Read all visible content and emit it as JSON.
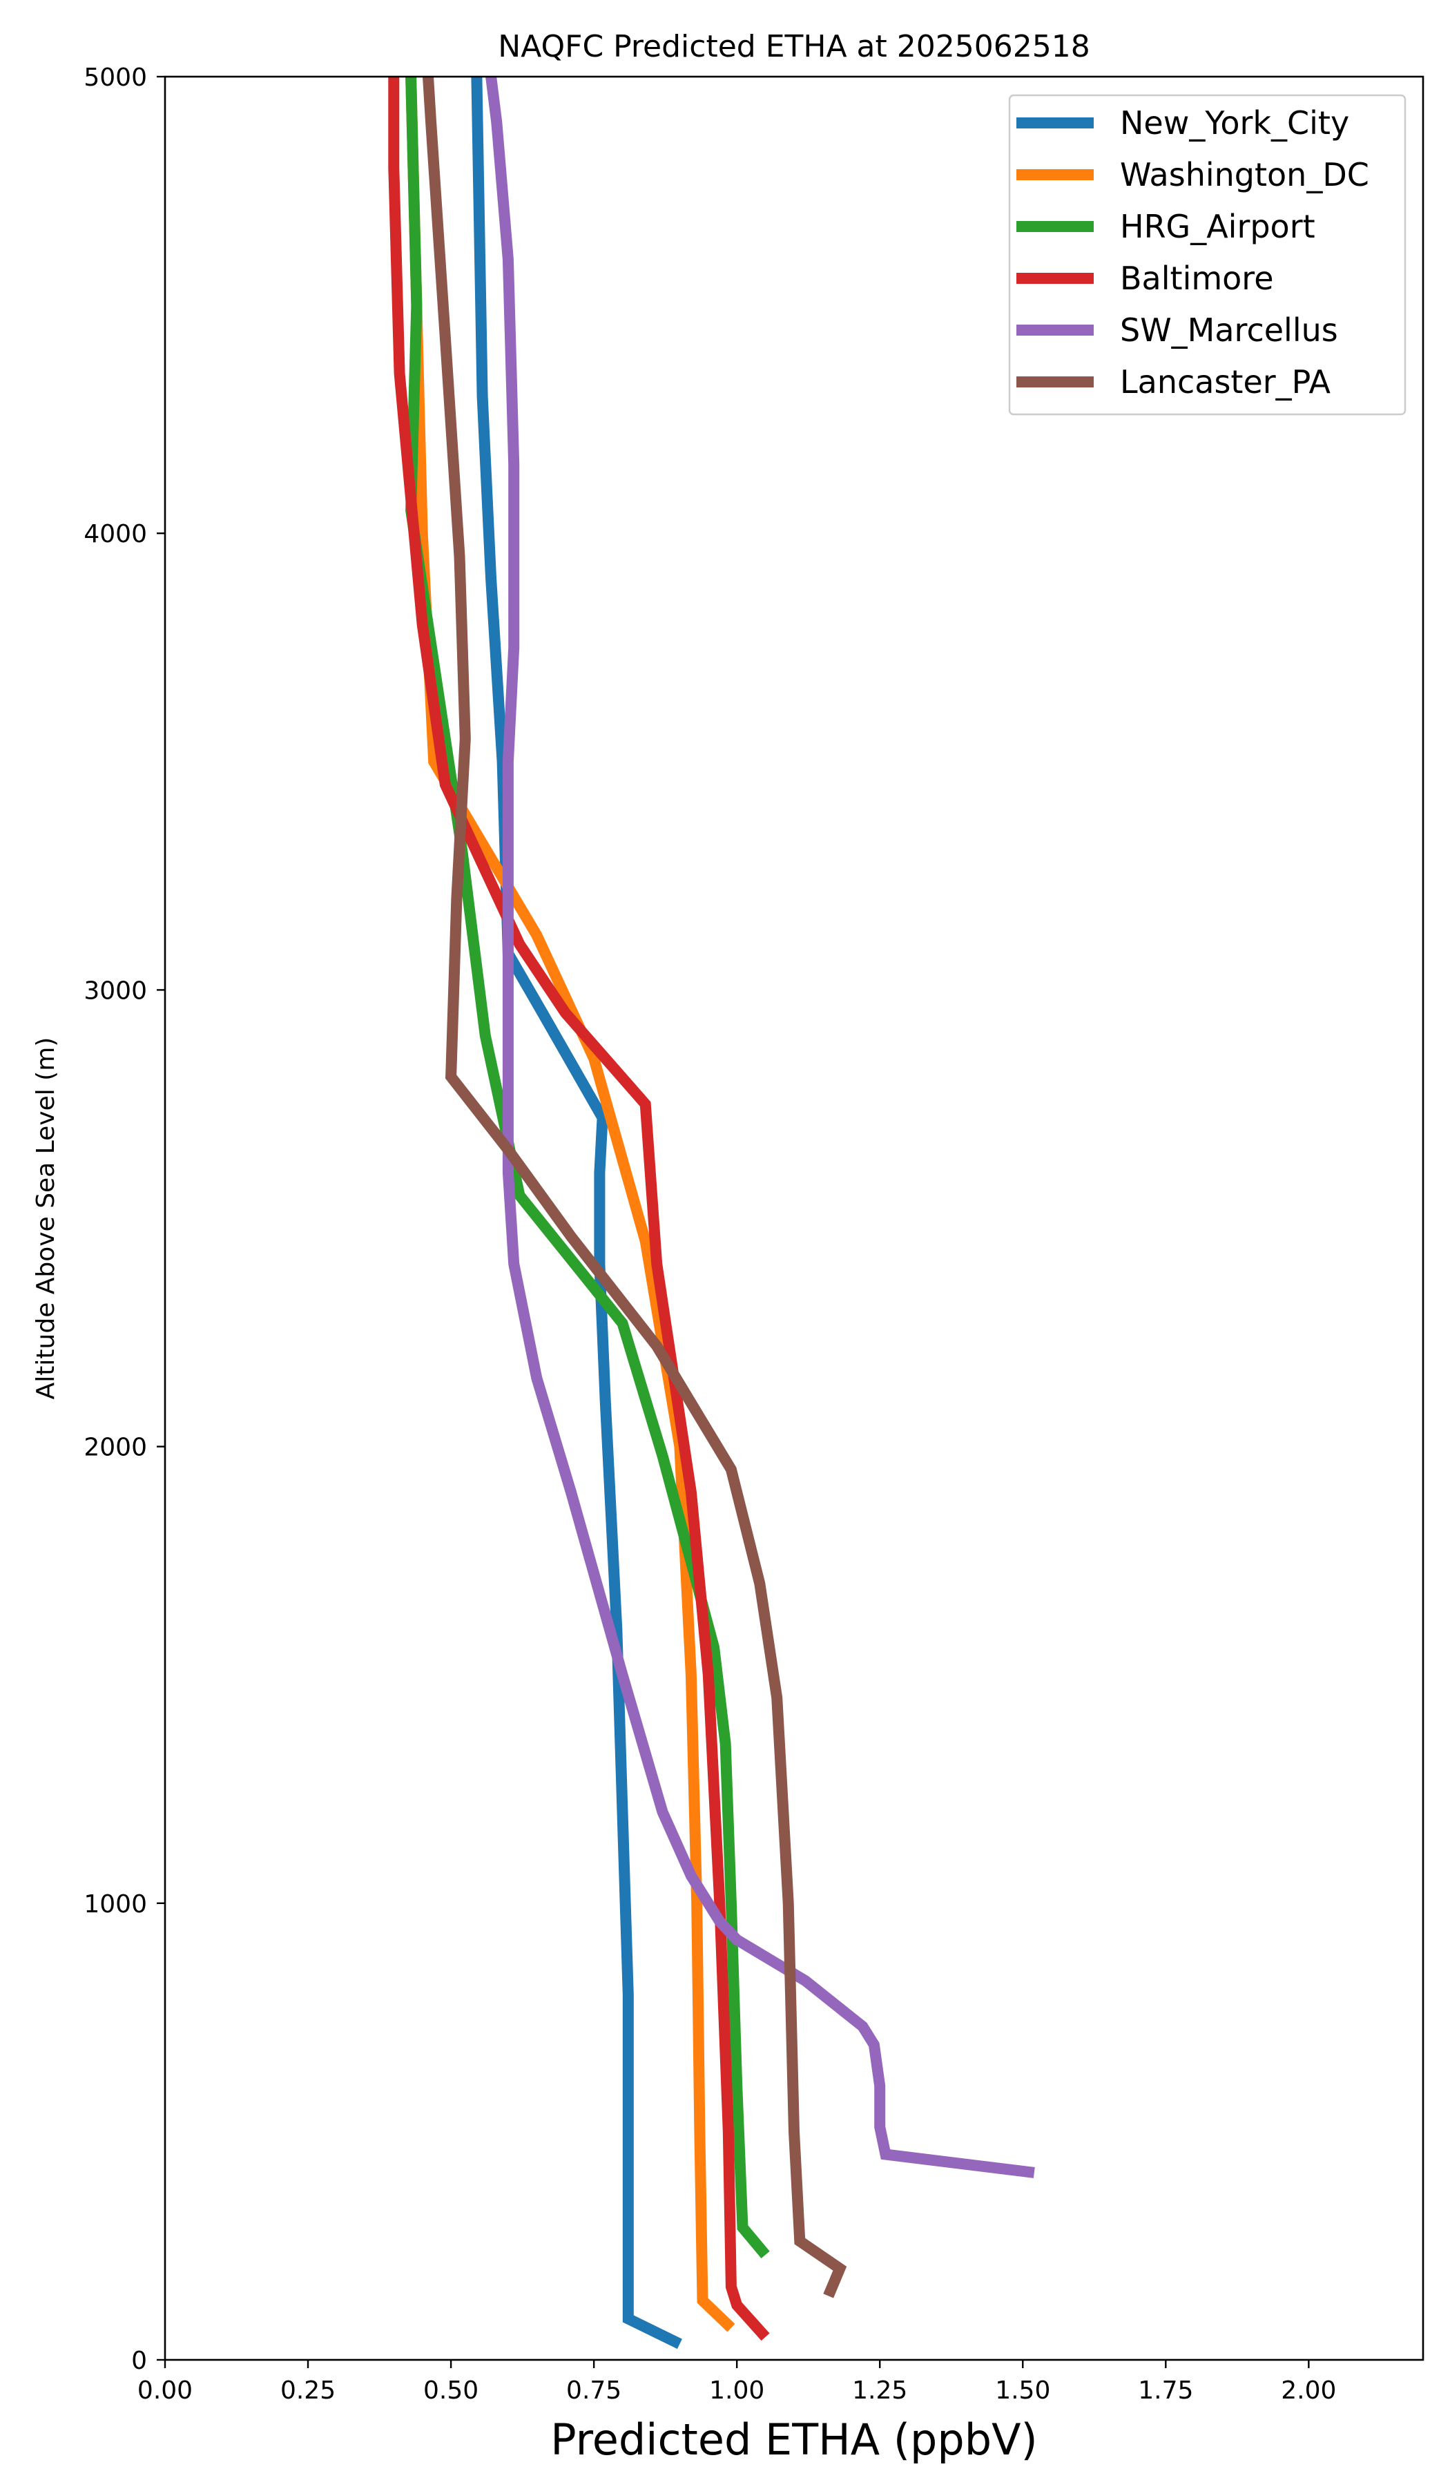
{
  "chart_data": {
    "type": "line",
    "title": "NAQFC Predicted ETHA at 2025062518",
    "xlabel": "Predicted ETHA (ppbV)",
    "ylabel": "Altitude Above Sea Level (m)",
    "xlim": [
      0.0,
      2.2
    ],
    "ylim": [
      0,
      5000
    ],
    "x_ticks": [
      "0.00",
      "0.25",
      "0.50",
      "0.75",
      "1.00",
      "1.25",
      "1.50",
      "1.75",
      "2.00"
    ],
    "y_ticks": [
      "0",
      "1000",
      "2000",
      "3000",
      "4000",
      "5000"
    ],
    "grid": false,
    "legend_position": "top-right",
    "series": [
      {
        "name": "New_York_City",
        "color": "#1f77b4",
        "points": [
          [
            0.9,
            35
          ],
          [
            0.81,
            90
          ],
          [
            0.81,
            250
          ],
          [
            0.81,
            500
          ],
          [
            0.81,
            800
          ],
          [
            0.8,
            1200
          ],
          [
            0.79,
            1600
          ],
          [
            0.77,
            2100
          ],
          [
            0.76,
            2400
          ],
          [
            0.76,
            2600
          ],
          [
            0.765,
            2720
          ],
          [
            0.66,
            2950
          ],
          [
            0.6,
            3080
          ],
          [
            0.59,
            3500
          ],
          [
            0.57,
            3900
          ],
          [
            0.555,
            4300
          ],
          [
            0.55,
            4650
          ],
          [
            0.545,
            5000
          ]
        ]
      },
      {
        "name": "Washington_DC",
        "color": "#ff7f0e",
        "points": [
          [
            0.99,
            70
          ],
          [
            0.94,
            130
          ],
          [
            0.935,
            500
          ],
          [
            0.93,
            1000
          ],
          [
            0.92,
            1500
          ],
          [
            0.9,
            2000
          ],
          [
            0.84,
            2450
          ],
          [
            0.75,
            2850
          ],
          [
            0.65,
            3120
          ],
          [
            0.47,
            3500
          ],
          [
            0.45,
            4000
          ],
          [
            0.44,
            4500
          ],
          [
            0.43,
            5000
          ]
        ]
      },
      {
        "name": "HRG_Airport",
        "color": "#2ca02c",
        "points": [
          [
            1.05,
            230
          ],
          [
            1.01,
            290
          ],
          [
            1.0,
            600
          ],
          [
            0.99,
            1000
          ],
          [
            0.98,
            1350
          ],
          [
            0.96,
            1560
          ],
          [
            0.87,
            1980
          ],
          [
            0.8,
            2270
          ],
          [
            0.62,
            2550
          ],
          [
            0.56,
            2900
          ],
          [
            0.52,
            3300
          ],
          [
            0.49,
            3550
          ],
          [
            0.43,
            4050
          ],
          [
            0.44,
            4500
          ],
          [
            0.43,
            5000
          ]
        ]
      },
      {
        "name": "Baltimore",
        "color": "#d62728",
        "points": [
          [
            1.05,
            50
          ],
          [
            1.0,
            120
          ],
          [
            0.99,
            160
          ],
          [
            0.985,
            500
          ],
          [
            0.97,
            1000
          ],
          [
            0.95,
            1500
          ],
          [
            0.92,
            1900
          ],
          [
            0.86,
            2400
          ],
          [
            0.84,
            2750
          ],
          [
            0.7,
            2950
          ],
          [
            0.62,
            3100
          ],
          [
            0.49,
            3450
          ],
          [
            0.45,
            3800
          ],
          [
            0.41,
            4350
          ],
          [
            0.4,
            4800
          ],
          [
            0.4,
            5000
          ]
        ]
      },
      {
        "name": "SW_Marcellus",
        "color": "#9467bd",
        "points": [
          [
            1.52,
            410
          ],
          [
            1.26,
            450
          ],
          [
            1.25,
            510
          ],
          [
            1.25,
            600
          ],
          [
            1.24,
            690
          ],
          [
            1.22,
            730
          ],
          [
            1.12,
            830
          ],
          [
            1.0,
            920
          ],
          [
            0.97,
            960
          ],
          [
            0.92,
            1060
          ],
          [
            0.87,
            1200
          ],
          [
            0.8,
            1500
          ],
          [
            0.71,
            1900
          ],
          [
            0.65,
            2150
          ],
          [
            0.61,
            2400
          ],
          [
            0.6,
            2600
          ],
          [
            0.6,
            3000
          ],
          [
            0.6,
            3500
          ],
          [
            0.61,
            3750
          ],
          [
            0.61,
            4150
          ],
          [
            0.6,
            4600
          ],
          [
            0.58,
            4900
          ],
          [
            0.57,
            5000
          ]
        ]
      },
      {
        "name": "Lancaster_PA",
        "color": "#8c564b",
        "points": [
          [
            1.16,
            140
          ],
          [
            1.18,
            200
          ],
          [
            1.11,
            260
          ],
          [
            1.1,
            500
          ],
          [
            1.09,
            1000
          ],
          [
            1.07,
            1450
          ],
          [
            1.04,
            1700
          ],
          [
            0.99,
            1950
          ],
          [
            0.86,
            2220
          ],
          [
            0.71,
            2460
          ],
          [
            0.6,
            2650
          ],
          [
            0.5,
            2810
          ],
          [
            0.51,
            3200
          ],
          [
            0.525,
            3550
          ],
          [
            0.515,
            3950
          ],
          [
            0.49,
            4430
          ],
          [
            0.465,
            4900
          ],
          [
            0.46,
            5000
          ]
        ]
      }
    ]
  }
}
